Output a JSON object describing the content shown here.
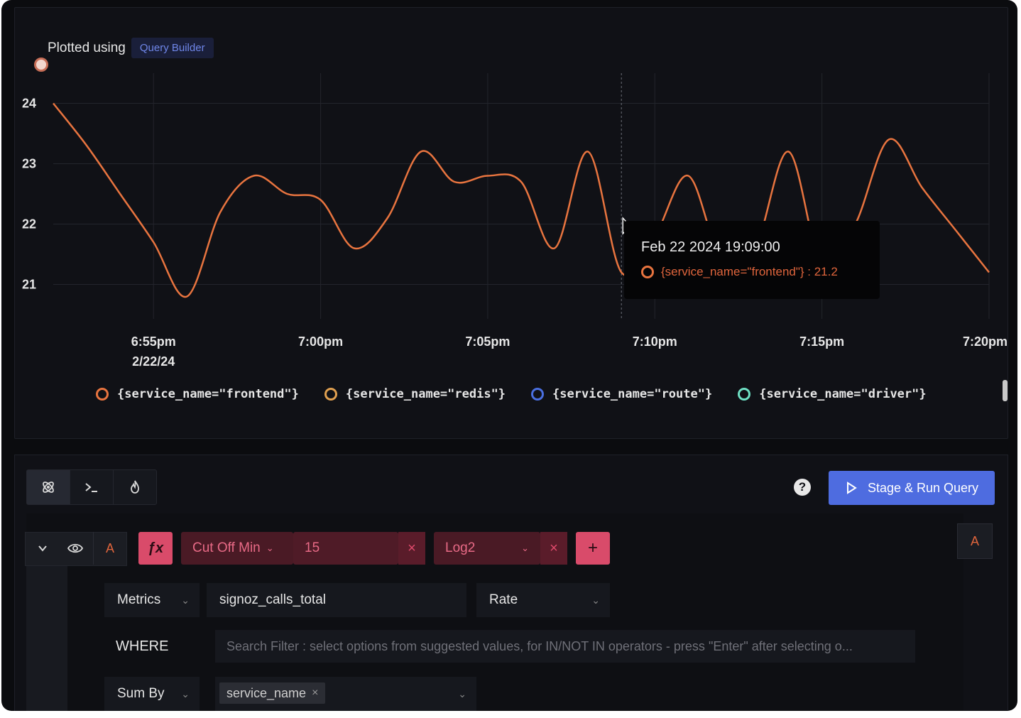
{
  "chart": {
    "plotted_label": "Plotted using",
    "source_badge": "Query Builder",
    "y_ticks": [
      "24",
      "23",
      "22",
      "21"
    ],
    "x_ticks": [
      "6:55pm",
      "7:00pm",
      "7:05pm",
      "7:10pm",
      "7:15pm",
      "7:20pm"
    ],
    "x_date": "2/22/24",
    "tooltip": {
      "time": "Feb 22 2024 19:09:00",
      "series_text": "{service_name=\"frontend\"} : 21.2"
    },
    "legend": [
      {
        "label": "{service_name=\"frontend\"}",
        "color": "#e8743f"
      },
      {
        "label": "{service_name=\"redis\"}",
        "color": "#e0a050"
      },
      {
        "label": "{service_name=\"route\"}",
        "color": "#4a6fe0"
      },
      {
        "label": "{service_name=\"driver\"}",
        "color": "#6fe0c4"
      }
    ],
    "line_color": "#e8743f"
  },
  "chart_data": {
    "type": "line",
    "series": [
      {
        "name": "{service_name=\"frontend\"}",
        "x": [
          "6:52pm",
          "6:53pm",
          "6:54pm",
          "6:55pm",
          "6:56pm",
          "6:57pm",
          "6:58pm",
          "6:59pm",
          "7:00pm",
          "7:01pm",
          "7:02pm",
          "7:03pm",
          "7:04pm",
          "7:05pm",
          "7:06pm",
          "7:07pm",
          "7:08pm",
          "7:09pm",
          "7:10pm",
          "7:11pm",
          "7:12pm",
          "7:13pm",
          "7:14pm",
          "7:15pm",
          "7:16pm",
          "7:17pm",
          "7:18pm",
          "7:19pm",
          "7:20pm"
        ],
        "values": [
          24.0,
          23.3,
          22.5,
          21.7,
          20.8,
          22.2,
          22.8,
          22.5,
          22.4,
          21.6,
          22.1,
          23.2,
          22.7,
          22.8,
          22.7,
          21.6,
          23.2,
          21.2,
          21.8,
          22.8,
          21.4,
          21.6,
          23.2,
          21.3,
          22.0,
          23.4,
          22.6,
          21.9,
          21.2
        ]
      },
      {
        "name": "{service_name=\"redis\"}",
        "values": []
      },
      {
        "name": "{service_name=\"route\"}",
        "values": []
      },
      {
        "name": "{service_name=\"driver\"}",
        "values": []
      }
    ],
    "xlabel": "",
    "ylabel": "",
    "ylim": [
      20.5,
      24.5
    ],
    "grid": true,
    "legend_position": "bottom"
  },
  "toolbar": {
    "tabs": [
      "query-builder",
      "clickhouse-query",
      "promql"
    ],
    "help": "?",
    "run_label": "Stage & Run Query"
  },
  "query": {
    "query_name": "A",
    "fx": "ƒx",
    "fn1_name": "Cut Off Min",
    "fn1_value": "15",
    "fn2_name": "Log2",
    "plus": "+",
    "formula_label": "A",
    "data_source": "Metrics",
    "metric": "signoz_calls_total",
    "aggregation": "Rate",
    "where_label": "WHERE",
    "search_placeholder": "Search Filter : select options from suggested values, for IN/NOT IN operators - press \"Enter\" after selecting o...",
    "group_label": "Sum By",
    "group_tag": "service_name",
    "remove": "×"
  }
}
